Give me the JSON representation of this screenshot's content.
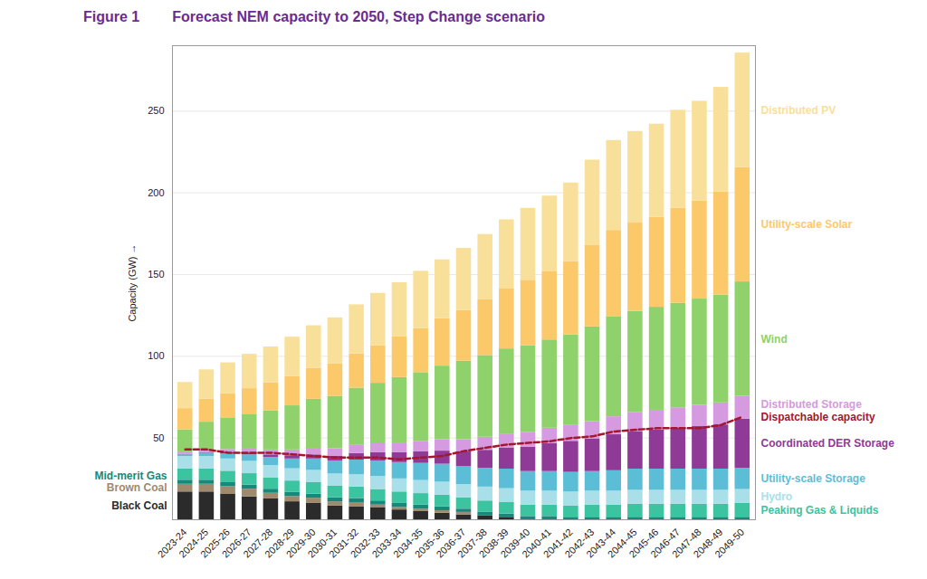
{
  "chart_data": {
    "type": "bar",
    "figure_label": "Figure 1",
    "title": "Forecast NEM capacity to 2050, Step Change scenario",
    "y_label": "Capacity (GW)",
    "stacked": true,
    "grid": true,
    "ylim": [
      0,
      290
    ],
    "yticks": [
      50,
      100,
      150,
      200,
      250
    ],
    "categories": [
      "2023-24",
      "2024-25",
      "2025-26",
      "2026-27",
      "2027-28",
      "2028-29",
      "2029-30",
      "2030-31",
      "2031-32",
      "2032-33",
      "2033-34",
      "2034-35",
      "2035-36",
      "2036-37",
      "2037-38",
      "2038-39",
      "2039-40",
      "2040-41",
      "2041-42",
      "2042-43",
      "2043-44",
      "2044-45",
      "2045-46",
      "2046-47",
      "2047-48",
      "2048-49",
      "2049-50"
    ],
    "series": [
      {
        "name": "Black Coal",
        "color": "#2b2b2b",
        "values": [
          17,
          17,
          15.5,
          14,
          13,
          11,
          10,
          8.5,
          8,
          7.5,
          6,
          5,
          4,
          3,
          2.5,
          1.5,
          0,
          0,
          0,
          0,
          0,
          0,
          0,
          0,
          0,
          0,
          0
        ]
      },
      {
        "name": "Brown Coal",
        "color": "#a08a6e",
        "values": [
          4.7,
          4.7,
          4.7,
          4.7,
          3.2,
          3.2,
          3.2,
          2.5,
          2.5,
          1.5,
          1.5,
          1.5,
          1.5,
          1.5,
          0,
          0,
          0,
          0,
          0,
          0,
          0,
          0,
          0,
          0,
          0,
          0,
          0
        ]
      },
      {
        "name": "Mid-merit Gas",
        "color": "#16897a",
        "values": [
          2.5,
          2.5,
          2.5,
          2.5,
          2.5,
          2.5,
          2.5,
          2.5,
          2.5,
          2.5,
          2.5,
          2.5,
          2.5,
          2,
          2,
          2,
          2,
          2,
          1.5,
          1.5,
          1.5,
          1.5,
          1.5,
          1.5,
          1.5,
          1.5,
          1.5
        ]
      },
      {
        "name": "Peaking Gas & Liquids",
        "color": "#3cc3a0",
        "values": [
          7,
          7,
          7,
          7,
          7,
          7,
          7,
          7,
          7,
          7,
          7,
          7,
          7,
          7,
          7,
          7,
          7,
          7,
          7,
          7.5,
          7.5,
          8,
          8,
          8,
          8,
          8,
          8.5
        ]
      },
      {
        "name": "Hydro",
        "color": "#a8dfe8",
        "values": [
          7.5,
          7.5,
          7.5,
          7.5,
          7.5,
          7.5,
          7.5,
          7.5,
          7.5,
          8,
          8,
          8,
          8,
          8,
          8.5,
          8.5,
          8.5,
          8.5,
          8.5,
          8.5,
          8.5,
          8.5,
          8.5,
          8.5,
          8.5,
          8.5,
          8.5
        ]
      },
      {
        "name": "Utility-scale Storage",
        "color": "#5bbdd6",
        "values": [
          1,
          2,
          3,
          4,
          5,
          6,
          7,
          8,
          9,
          9.5,
          10,
          10.5,
          11,
          11,
          11.5,
          12,
          12,
          12,
          12,
          12,
          12.5,
          13,
          13,
          13,
          13,
          13,
          13
        ]
      },
      {
        "name": "Coordinated DER Storage",
        "color": "#8e3a96",
        "values": [
          0.3,
          0.5,
          0.8,
          1,
          1.5,
          2,
          2.5,
          3,
          4,
          5,
          6,
          7,
          8,
          9,
          11,
          13,
          15,
          17,
          19,
          20,
          22,
          23,
          24,
          25,
          26,
          27,
          30
        ]
      },
      {
        "name": "Distributed Storage",
        "color": "#d69ae0",
        "values": [
          1,
          1.5,
          2,
          2.5,
          3,
          3.5,
          4,
          4.5,
          5,
          5.5,
          6,
          6.5,
          7,
          7.5,
          8,
          8.5,
          9,
          9.5,
          10,
          10.5,
          11,
          11.5,
          12,
          12.5,
          13,
          13.5,
          14
        ]
      },
      {
        "name": "Wind",
        "color": "#8fd16a",
        "values": [
          14,
          17,
          19,
          21,
          24,
          27,
          30,
          32,
          35,
          37,
          40,
          42,
          45,
          48,
          50,
          52,
          53,
          54,
          55,
          58,
          61,
          62,
          63,
          64,
          65,
          66,
          70
        ]
      },
      {
        "name": "Utility-scale Solar",
        "color": "#fcc96a",
        "values": [
          13,
          14,
          15,
          16,
          17,
          18,
          19,
          20,
          21,
          23,
          25,
          27,
          29,
          31,
          34,
          37,
          40,
          42,
          45,
          50,
          53,
          54,
          55,
          58,
          60,
          63,
          70
        ]
      },
      {
        "name": "Distributed PV",
        "color": "#f9e09a",
        "values": [
          16,
          18,
          19,
          21,
          22,
          24,
          26,
          28,
          30,
          32,
          33,
          35,
          36,
          38,
          40,
          42,
          44,
          46,
          48,
          52,
          55,
          56,
          57,
          60,
          61,
          64,
          70
        ]
      },
      {
        "name": "Dispatchable capacity",
        "type": "line",
        "line_style": "dashed",
        "color": "#a3162e",
        "values": [
          43,
          43,
          41,
          41,
          41,
          40,
          39,
          38,
          38,
          38,
          37,
          38,
          39,
          42,
          44,
          46,
          47,
          48,
          50,
          51,
          54,
          55,
          56,
          56,
          56,
          58,
          63
        ]
      }
    ]
  }
}
